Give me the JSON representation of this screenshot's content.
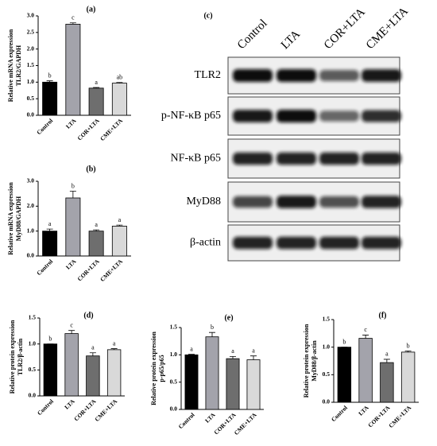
{
  "chart_data": [
    {
      "type": "bar",
      "panel": "(a)",
      "ylabel": [
        "Relative mRNA expression",
        "TLR2/GAPDH"
      ],
      "categories": [
        "Control",
        "LTA",
        "COR+LTA",
        "CME+LTA"
      ],
      "values": [
        1.0,
        2.75,
        0.82,
        0.97
      ],
      "errors": [
        0.04,
        0.04,
        0.02,
        0.02
      ],
      "letters": [
        "b",
        "c",
        "a",
        "ab"
      ],
      "colors": [
        "#000000",
        "#a3a3ab",
        "#6e6e6e",
        "#d9d9d9"
      ],
      "ylim": [
        0,
        3
      ],
      "yticks": [
        {
          "value": 0,
          "label": "0.0"
        },
        {
          "value": 0.5,
          "label": "0.5"
        },
        {
          "value": 1,
          "label": "1.0"
        },
        {
          "value": 1.5,
          "label": "1.5"
        },
        {
          "value": 2,
          "label": "2.0"
        },
        {
          "value": 2.5,
          "label": "2.5"
        },
        {
          "value": 3,
          "label": "3.0"
        }
      ]
    },
    {
      "type": "bar",
      "panel": "(b)",
      "ylabel": [
        "Relative mRNA expression",
        "MyD88/GAPDH"
      ],
      "categories": [
        "Control",
        "LTA",
        "COR+LTA",
        "CME+LTA"
      ],
      "values": [
        1.0,
        2.33,
        1.0,
        1.2
      ],
      "errors": [
        0.08,
        0.27,
        0.05,
        0.04
      ],
      "letters": [
        "a",
        "b",
        "a",
        "a"
      ],
      "colors": [
        "#000000",
        "#a3a3ab",
        "#6e6e6e",
        "#d9d9d9"
      ],
      "ylim": [
        0,
        3
      ],
      "yticks": [
        {
          "value": 0,
          "label": "0.0"
        },
        {
          "value": 1,
          "label": "1.0"
        },
        {
          "value": 2,
          "label": "2.0"
        },
        {
          "value": 3,
          "label": "3.0"
        }
      ]
    },
    {
      "type": "bar",
      "panel": "(d)",
      "ylabel": [
        "Relative protein expression",
        "TLR2/β-actin"
      ],
      "categories": [
        "Control",
        "LTA",
        "COR+LTA",
        "CME+LTA"
      ],
      "values": [
        1.0,
        1.2,
        0.77,
        0.89
      ],
      "errors": [
        0,
        0.06,
        0.06,
        0.02
      ],
      "letters": [
        "b",
        "c",
        "a",
        "a"
      ],
      "colors": [
        "#000000",
        "#a3a3ab",
        "#6e6e6e",
        "#d9d9d9"
      ],
      "ylim": [
        0,
        1.5
      ],
      "yticks": [
        {
          "value": 0,
          "label": "0.0"
        },
        {
          "value": 0.5,
          "label": "0.5"
        },
        {
          "value": 1,
          "label": "1.0"
        },
        {
          "value": 1.5,
          "label": "1.5"
        }
      ]
    },
    {
      "type": "bar",
      "panel": "(e)",
      "ylabel": [
        "Relative protein expression",
        "p-p65/p65"
      ],
      "categories": [
        "Control",
        "LTA",
        "COR+LTA",
        "CME+LTA"
      ],
      "values": [
        1.0,
        1.33,
        0.93,
        0.91
      ],
      "errors": [
        0.01,
        0.08,
        0.04,
        0.07
      ],
      "letters": [
        "a",
        "b",
        "a",
        "a"
      ],
      "colors": [
        "#000000",
        "#a3a3ab",
        "#6e6e6e",
        "#d9d9d9"
      ],
      "ylim": [
        0,
        1.5
      ],
      "yticks": [
        {
          "value": 0,
          "label": "0.0"
        },
        {
          "value": 0.5,
          "label": "0.5"
        },
        {
          "value": 1,
          "label": "1.0"
        },
        {
          "value": 1.5,
          "label": "1.5"
        }
      ]
    },
    {
      "type": "bar",
      "panel": "(f)",
      "ylabel": [
        "Relative protein expression",
        "MyD88/β-actin"
      ],
      "categories": [
        "Control",
        "LTA",
        "COR+LTA",
        "CME+LTA"
      ],
      "values": [
        1.0,
        1.16,
        0.72,
        0.91
      ],
      "errors": [
        0,
        0.06,
        0.06,
        0.02
      ],
      "letters": [
        "b",
        "c",
        "a",
        "b"
      ],
      "colors": [
        "#000000",
        "#a3a3ab",
        "#6e6e6e",
        "#d9d9d9"
      ],
      "ylim": [
        0,
        1.5
      ],
      "yticks": [
        {
          "value": 0,
          "label": "0.0"
        },
        {
          "value": 0.5,
          "label": "0.5"
        },
        {
          "value": 1,
          "label": "1.0"
        },
        {
          "value": 1.5,
          "label": "1.5"
        }
      ]
    }
  ],
  "blot": {
    "panel": "(c)",
    "lanes": [
      "Control",
      "LTA",
      "COR+LTA",
      "CME+LTA"
    ],
    "rows": [
      "TLR2",
      "p-NF-κB p65",
      "NF-κB p65",
      "MyD88",
      "β-actin"
    ]
  }
}
